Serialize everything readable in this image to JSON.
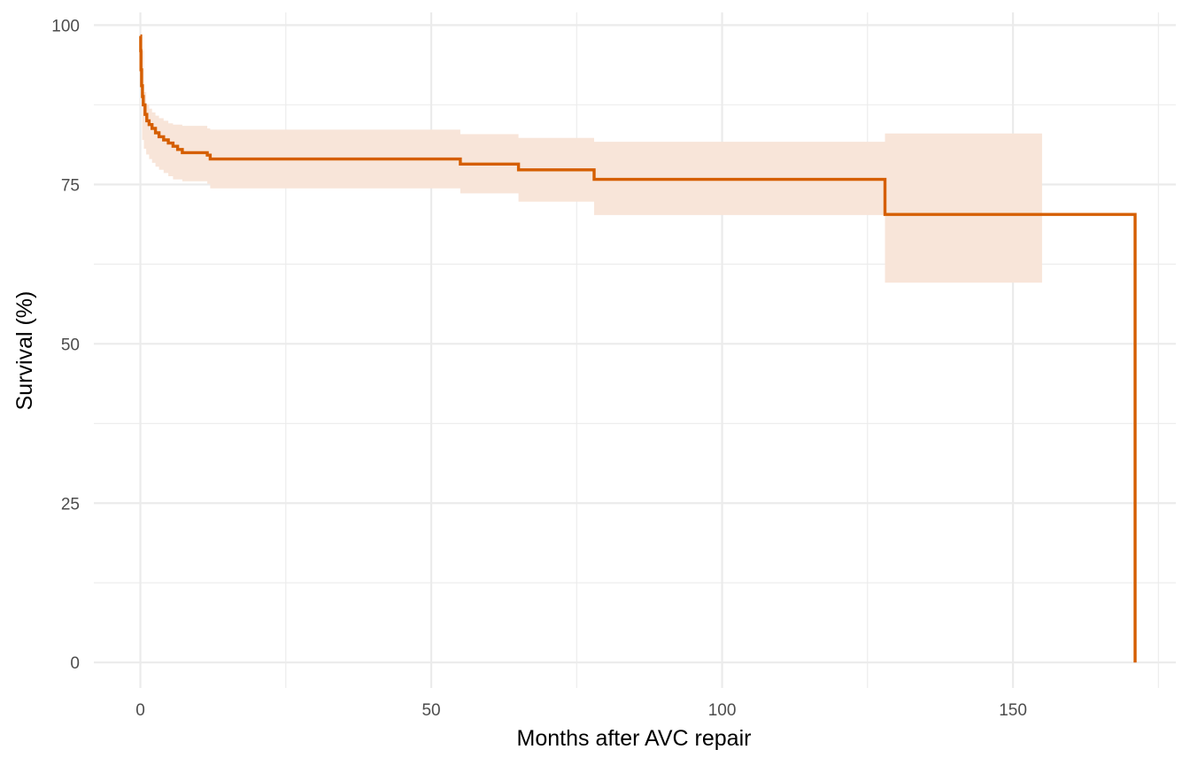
{
  "chart_data": {
    "type": "line",
    "xlabel": "Months after AVC repair",
    "ylabel": "Survival (%)",
    "xlim": [
      -8,
      178
    ],
    "ylim": [
      -4,
      102
    ],
    "x_ticks": [
      0,
      50,
      100,
      150
    ],
    "x_tick_labels": [
      "0",
      "50",
      "100",
      "150"
    ],
    "y_ticks": [
      0,
      25,
      50,
      75,
      100
    ],
    "y_tick_labels": [
      "0",
      "25",
      "50",
      "75",
      "100"
    ],
    "grid": true,
    "legend": "none",
    "colors": {
      "line": "#d55e00",
      "band": "#f8e5d9"
    },
    "series": [
      {
        "step_points": [
          [
            0,
            98.3
          ],
          [
            0.05,
            96.0
          ],
          [
            0.1,
            93.0
          ],
          [
            0.2,
            90.5
          ],
          [
            0.35,
            88.8
          ],
          [
            0.5,
            87.5
          ],
          [
            0.8,
            86.0
          ],
          [
            1.1,
            85.0
          ],
          [
            1.5,
            84.4
          ],
          [
            2.0,
            83.8
          ],
          [
            2.6,
            83.1
          ],
          [
            3.2,
            82.5
          ],
          [
            4.0,
            82.0
          ],
          [
            4.8,
            81.5
          ],
          [
            5.6,
            81.0
          ],
          [
            6.4,
            80.5
          ],
          [
            7.2,
            80.0
          ],
          [
            11.5,
            79.6
          ],
          [
            12.0,
            79.0
          ],
          [
            55.0,
            78.2
          ],
          [
            65.0,
            77.3
          ],
          [
            78.0,
            75.8
          ],
          [
            128.0,
            70.3
          ],
          [
            171.0,
            0
          ],
          [
            171.0,
            0
          ]
        ],
        "ci_band": [
          {
            "x": 0.3,
            "lower": 82.0,
            "upper": 96.0
          },
          {
            "x": 0.6,
            "lower": 80.6,
            "upper": 89.5
          },
          {
            "x": 1.0,
            "lower": 79.7,
            "upper": 87.6
          },
          {
            "x": 1.5,
            "lower": 79.0,
            "upper": 86.9
          },
          {
            "x": 2.0,
            "lower": 78.4,
            "upper": 86.3
          },
          {
            "x": 2.6,
            "lower": 77.8,
            "upper": 85.8
          },
          {
            "x": 3.2,
            "lower": 77.3,
            "upper": 85.4
          },
          {
            "x": 4.0,
            "lower": 76.8,
            "upper": 85.0
          },
          {
            "x": 4.8,
            "lower": 76.3,
            "upper": 84.6
          },
          {
            "x": 5.6,
            "lower": 75.8,
            "upper": 84.4
          },
          {
            "x": 7.2,
            "lower": 75.5,
            "upper": 84.2
          },
          {
            "x": 11.5,
            "lower": 75.1,
            "upper": 83.8
          },
          {
            "x": 12.0,
            "lower": 74.4,
            "upper": 83.6
          },
          {
            "x": 55.0,
            "lower": 73.6,
            "upper": 82.9
          },
          {
            "x": 65.0,
            "lower": 72.3,
            "upper": 82.3
          },
          {
            "x": 78.0,
            "lower": 70.2,
            "upper": 81.7
          },
          {
            "x": 125.0,
            "lower": 70.2,
            "upper": 81.7
          },
          {
            "x": 128.0,
            "lower": 59.6,
            "upper": 83.0
          },
          {
            "x": 155.0,
            "lower": 59.6,
            "upper": 83.0
          }
        ]
      }
    ]
  }
}
